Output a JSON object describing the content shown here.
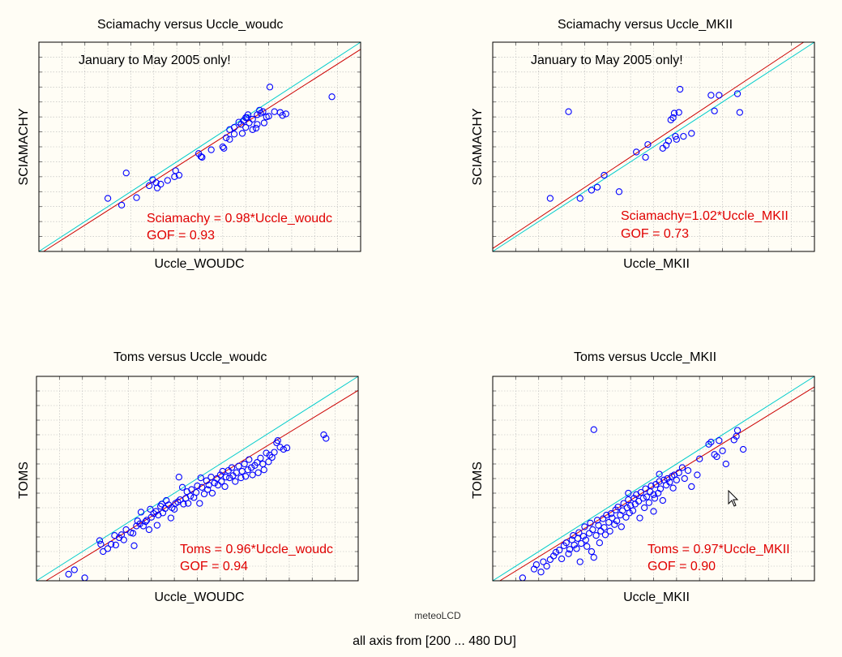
{
  "footer": "all axis from [200 ... 480 DU]",
  "credit": "meteoLCD",
  "colors": {
    "points": "#0000ff",
    "fit_line": "#cc0000",
    "identity_line": "#00cccc",
    "grid": "#b8b8b8",
    "annotation": "#e00000"
  },
  "chart_data": [
    {
      "type": "scatter",
      "title": "Sciamachy versus Uccle_woudc",
      "xlabel": "Uccle_WOUDC",
      "ylabel": "SCIAMACHY",
      "note": "January to May 2005 only!",
      "equation": "Sciamachy = 0.98*Uccle_woudc",
      "gof": "GOF = 0.93",
      "fit_slope": 0.98,
      "xlim": [
        200,
        480
      ],
      "ylim": [
        200,
        480
      ],
      "grid": true,
      "points": [
        [
          260,
          271
        ],
        [
          272,
          262
        ],
        [
          276,
          305
        ],
        [
          285,
          272
        ],
        [
          296,
          288
        ],
        [
          299,
          296
        ],
        [
          302,
          292
        ],
        [
          303,
          285
        ],
        [
          306,
          290
        ],
        [
          312,
          295
        ],
        [
          318,
          300
        ],
        [
          319,
          308
        ],
        [
          322,
          302
        ],
        [
          339,
          331
        ],
        [
          341,
          327
        ],
        [
          342,
          326
        ],
        [
          350,
          336
        ],
        [
          360,
          340
        ],
        [
          361,
          338
        ],
        [
          363,
          352
        ],
        [
          366,
          350
        ],
        [
          366,
          363
        ],
        [
          370,
          366
        ],
        [
          370,
          357
        ],
        [
          374,
          373
        ],
        [
          376,
          370
        ],
        [
          377,
          358
        ],
        [
          378,
          375
        ],
        [
          380,
          366
        ],
        [
          380,
          379
        ],
        [
          381,
          379
        ],
        [
          382,
          383
        ],
        [
          383,
          372
        ],
        [
          386,
          363
        ],
        [
          386,
          377
        ],
        [
          389,
          365
        ],
        [
          390,
          370
        ],
        [
          390,
          383
        ],
        [
          392,
          389
        ],
        [
          393,
          385
        ],
        [
          395,
          387
        ],
        [
          396,
          372
        ],
        [
          398,
          380
        ],
        [
          400,
          381
        ],
        [
          401,
          420
        ],
        [
          405,
          387
        ],
        [
          410,
          386
        ],
        [
          412,
          382
        ],
        [
          415,
          384
        ],
        [
          455,
          407
        ]
      ]
    },
    {
      "type": "scatter",
      "title": "Sciamachy versus Uccle_MKII",
      "xlabel": "Uccle_MKII",
      "ylabel": "SCIAMACHY",
      "note": "January to May 2005 only!",
      "equation": "Sciamachy=1.02*Uccle_MKII",
      "gof": "GOF = 0.73",
      "fit_slope": 1.02,
      "xlim": [
        200,
        480
      ],
      "ylim": [
        200,
        480
      ],
      "grid": true,
      "points": [
        [
          250,
          271
        ],
        [
          266,
          387
        ],
        [
          276,
          271
        ],
        [
          286,
          282
        ],
        [
          291,
          286
        ],
        [
          297,
          302
        ],
        [
          310,
          280
        ],
        [
          325,
          333
        ],
        [
          333,
          326
        ],
        [
          335,
          343
        ],
        [
          348,
          338
        ],
        [
          351,
          342
        ],
        [
          353,
          348
        ],
        [
          355,
          376
        ],
        [
          357,
          379
        ],
        [
          358,
          385
        ],
        [
          359,
          354
        ],
        [
          360,
          350
        ],
        [
          362,
          386
        ],
        [
          363,
          417
        ],
        [
          366,
          354
        ],
        [
          373,
          358
        ],
        [
          390,
          409
        ],
        [
          393,
          388
        ],
        [
          397,
          409
        ],
        [
          413,
          411
        ],
        [
          415,
          386
        ]
      ]
    },
    {
      "type": "scatter",
      "title": "Toms versus Uccle_woudc",
      "xlabel": "Uccle_WOUDC",
      "ylabel": "TOMS",
      "note": "",
      "equation": "Toms = 0.96*Uccle_woudc",
      "gof": "GOF = 0.94",
      "fit_slope": 0.96,
      "xlim": [
        200,
        480
      ],
      "ylim": [
        200,
        480
      ],
      "grid": true,
      "points": [
        [
          228,
          209
        ],
        [
          233,
          215
        ],
        [
          242,
          204
        ],
        [
          255,
          255
        ],
        [
          256,
          250
        ],
        [
          258,
          240
        ],
        [
          262,
          244
        ],
        [
          265,
          250
        ],
        [
          268,
          262
        ],
        [
          269,
          249
        ],
        [
          272,
          259
        ],
        [
          274,
          263
        ],
        [
          276,
          256
        ],
        [
          278,
          270
        ],
        [
          282,
          266
        ],
        [
          284,
          265
        ],
        [
          285,
          248
        ],
        [
          287,
          275
        ],
        [
          288,
          282
        ],
        [
          290,
          278
        ],
        [
          291,
          294
        ],
        [
          293,
          275
        ],
        [
          295,
          281
        ],
        [
          296,
          283
        ],
        [
          298,
          270
        ],
        [
          299,
          298
        ],
        [
          300,
          287
        ],
        [
          302,
          292
        ],
        [
          304,
          295
        ],
        [
          305,
          276
        ],
        [
          306,
          290
        ],
        [
          308,
          302
        ],
        [
          309,
          305
        ],
        [
          310,
          293
        ],
        [
          312,
          299
        ],
        [
          313,
          310
        ],
        [
          315,
          304
        ],
        [
          317,
          286
        ],
        [
          318,
          300
        ],
        [
          320,
          298
        ],
        [
          321,
          306
        ],
        [
          323,
          308
        ],
        [
          324,
          342
        ],
        [
          325,
          311
        ],
        [
          327,
          328
        ],
        [
          328,
          305
        ],
        [
          330,
          313
        ],
        [
          331,
          322
        ],
        [
          332,
          306
        ],
        [
          334,
          316
        ],
        [
          335,
          325
        ],
        [
          337,
          314
        ],
        [
          339,
          321
        ],
        [
          340,
          330
        ],
        [
          342,
          306
        ],
        [
          343,
          341
        ],
        [
          344,
          328
        ],
        [
          346,
          319
        ],
        [
          348,
          337
        ],
        [
          349,
          325
        ],
        [
          350,
          331
        ],
        [
          352,
          342
        ],
        [
          353,
          320
        ],
        [
          355,
          334
        ],
        [
          357,
          340
        ],
        [
          358,
          331
        ],
        [
          360,
          345
        ],
        [
          361,
          336
        ],
        [
          362,
          350
        ],
        [
          364,
          329
        ],
        [
          365,
          342
        ],
        [
          367,
          351
        ],
        [
          368,
          341
        ],
        [
          370,
          355
        ],
        [
          371,
          344
        ],
        [
          373,
          336
        ],
        [
          374,
          348
        ],
        [
          376,
          357
        ],
        [
          378,
          341
        ],
        [
          379,
          350
        ],
        [
          381,
          360
        ],
        [
          382,
          343
        ],
        [
          384,
          352
        ],
        [
          385,
          366
        ],
        [
          387,
          355
        ],
        [
          388,
          345
        ],
        [
          390,
          358
        ],
        [
          392,
          362
        ],
        [
          393,
          348
        ],
        [
          395,
          368
        ],
        [
          397,
          360
        ],
        [
          398,
          352
        ],
        [
          400,
          375
        ],
        [
          402,
          363
        ],
        [
          403,
          372
        ],
        [
          405,
          369
        ],
        [
          407,
          376
        ],
        [
          409,
          389
        ],
        [
          410,
          392
        ],
        [
          412,
          383
        ],
        [
          415,
          380
        ],
        [
          418,
          382
        ],
        [
          450,
          400
        ],
        [
          452,
          395
        ]
      ]
    },
    {
      "type": "scatter",
      "title": "Toms versus Uccle_MKII",
      "xlabel": "Uccle_MKII",
      "ylabel": "TOMS",
      "note": "",
      "equation": "Toms = 0.97*Uccle_MKII",
      "gof": "GOF = 0.90",
      "fit_slope": 0.97,
      "xlim": [
        200,
        480
      ],
      "ylim": [
        200,
        480
      ],
      "grid": true,
      "points": [
        [
          226,
          204
        ],
        [
          236,
          216
        ],
        [
          238,
          222
        ],
        [
          242,
          212
        ],
        [
          244,
          226
        ],
        [
          247,
          220
        ],
        [
          250,
          229
        ],
        [
          253,
          234
        ],
        [
          255,
          239
        ],
        [
          258,
          242
        ],
        [
          260,
          230
        ],
        [
          262,
          248
        ],
        [
          264,
          252
        ],
        [
          266,
          237
        ],
        [
          267,
          243
        ],
        [
          269,
          256
        ],
        [
          270,
          262
        ],
        [
          271,
          249
        ],
        [
          273,
          244
        ],
        [
          274,
          258
        ],
        [
          275,
          266
        ],
        [
          276,
          226
        ],
        [
          277,
          251
        ],
        [
          279,
          261
        ],
        [
          280,
          274
        ],
        [
          281,
          256
        ],
        [
          282,
          247
        ],
        [
          284,
          265
        ],
        [
          285,
          279
        ],
        [
          286,
          240
        ],
        [
          287,
          270
        ],
        [
          288,
          232
        ],
        [
          290,
          262
        ],
        [
          291,
          283
        ],
        [
          292,
          276
        ],
        [
          293,
          252
        ],
        [
          294,
          268
        ],
        [
          296,
          285
        ],
        [
          297,
          273
        ],
        [
          298,
          263
        ],
        [
          299,
          290
        ],
        [
          301,
          280
        ],
        [
          302,
          268
        ],
        [
          303,
          292
        ],
        [
          304,
          286
        ],
        [
          306,
          277
        ],
        [
          307,
          297
        ],
        [
          308,
          282
        ],
        [
          309,
          301
        ],
        [
          311,
          290
        ],
        [
          312,
          274
        ],
        [
          313,
          296
        ],
        [
          314,
          306
        ],
        [
          316,
          287
        ],
        [
          317,
          300
        ],
        [
          318,
          311
        ],
        [
          319,
          293
        ],
        [
          320,
          303
        ],
        [
          322,
          296
        ],
        [
          323,
          313
        ],
        [
          324,
          305
        ],
        [
          325,
          318
        ],
        [
          327,
          309
        ],
        [
          328,
          286
        ],
        [
          329,
          321
        ],
        [
          331,
          313
        ],
        [
          332,
          300
        ],
        [
          333,
          326
        ],
        [
          334,
          315
        ],
        [
          336,
          307
        ],
        [
          337,
          322
        ],
        [
          338,
          330
        ],
        [
          340,
          318
        ],
        [
          341,
          313
        ],
        [
          342,
          332
        ],
        [
          344,
          320
        ],
        [
          345,
          336
        ],
        [
          346,
          326
        ],
        [
          348,
          310
        ],
        [
          349,
          338
        ],
        [
          351,
          331
        ],
        [
          352,
          340
        ],
        [
          354,
          335
        ],
        [
          356,
          343
        ],
        [
          357,
          327
        ],
        [
          358,
          345
        ],
        [
          360,
          338
        ],
        [
          362,
          348
        ],
        [
          365,
          355
        ],
        [
          367,
          340
        ],
        [
          370,
          351
        ],
        [
          373,
          329
        ],
        [
          378,
          345
        ],
        [
          380,
          367
        ],
        [
          388,
          387
        ],
        [
          390,
          390
        ],
        [
          393,
          373
        ],
        [
          395,
          370
        ],
        [
          397,
          392
        ],
        [
          400,
          378
        ],
        [
          403,
          360
        ],
        [
          410,
          393
        ],
        [
          413,
          406
        ],
        [
          418,
          380
        ],
        [
          412,
          398
        ],
        [
          288,
          407
        ],
        [
          340,
          295
        ],
        [
          318,
          320
        ],
        [
          345,
          346
        ]
      ]
    }
  ]
}
